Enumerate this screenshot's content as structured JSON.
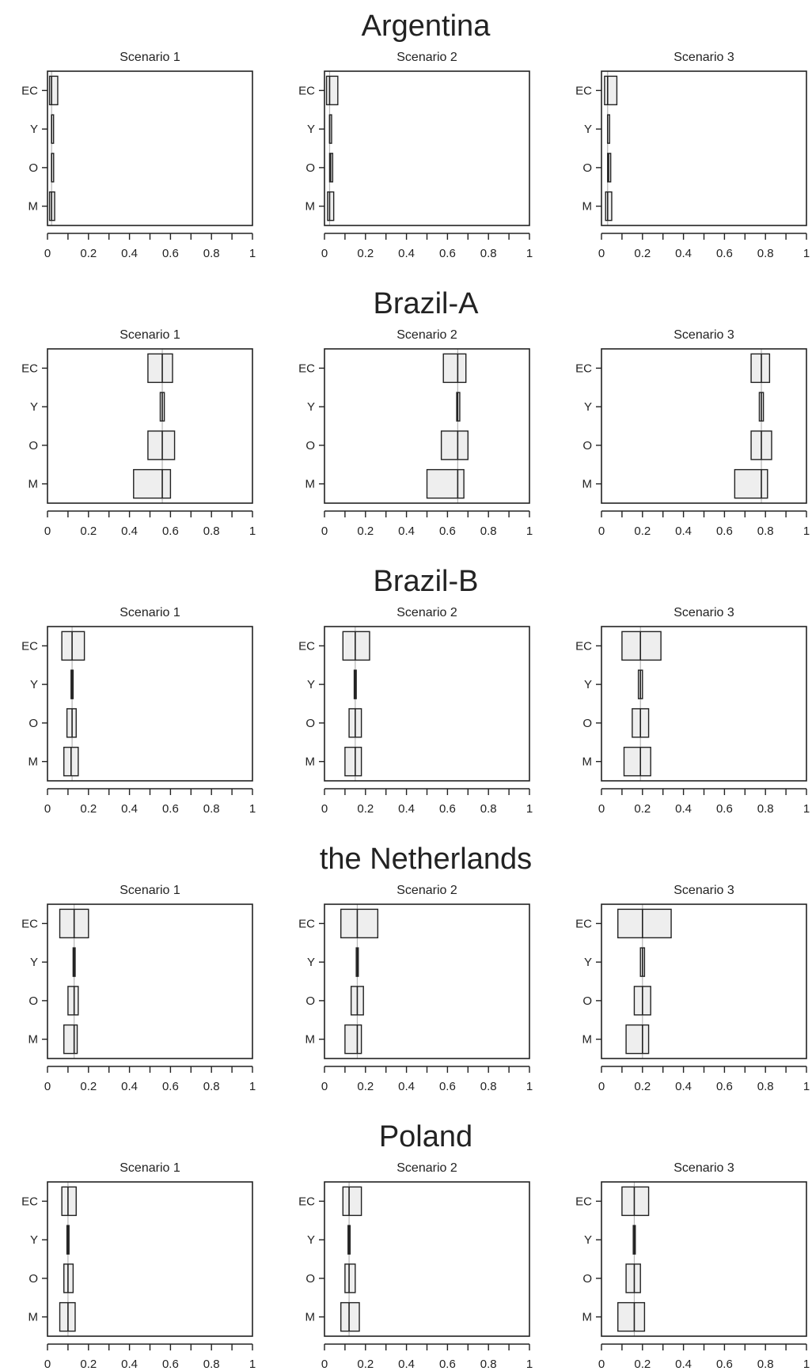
{
  "colors": {
    "box_fill": "#eeeeee",
    "stroke": "#222222",
    "reference_line": "#b5b5b5"
  },
  "chart_data": {
    "type": "boxplot",
    "categories": [
      "EC",
      "Y",
      "O",
      "M"
    ],
    "xlim": [
      0,
      1
    ],
    "xticks": [
      "0",
      "0.2",
      "0.4",
      "0.6",
      "0.8",
      "1"
    ],
    "scenario_titles": [
      "Scenario 1",
      "Scenario 2",
      "Scenario 3"
    ],
    "countries": [
      {
        "name": "Argentina",
        "scenarios": [
          {
            "title": "Scenario 1",
            "ref": 0.02,
            "boxes": [
              {
                "category": "EC",
                "q1": 0.01,
                "median": 0.02,
                "q3": 0.05
              },
              {
                "category": "Y",
                "q1": 0.02,
                "median": 0.02,
                "q3": 0.025
              },
              {
                "category": "O",
                "q1": 0.02,
                "median": 0.02,
                "q3": 0.03
              },
              {
                "category": "M",
                "q1": 0.01,
                "median": 0.02,
                "q3": 0.035
              }
            ]
          },
          {
            "title": "Scenario 2",
            "ref": 0.025,
            "boxes": [
              {
                "category": "EC",
                "q1": 0.01,
                "median": 0.025,
                "q3": 0.065
              },
              {
                "category": "Y",
                "q1": 0.025,
                "median": 0.025,
                "q3": 0.03
              },
              {
                "category": "O",
                "q1": 0.025,
                "median": 0.03,
                "q3": 0.04
              },
              {
                "category": "M",
                "q1": 0.015,
                "median": 0.025,
                "q3": 0.045
              }
            ]
          },
          {
            "title": "Scenario 3",
            "ref": 0.03,
            "boxes": [
              {
                "category": "EC",
                "q1": 0.015,
                "median": 0.03,
                "q3": 0.075
              },
              {
                "category": "Y",
                "q1": 0.03,
                "median": 0.03,
                "q3": 0.035
              },
              {
                "category": "O",
                "q1": 0.03,
                "median": 0.035,
                "q3": 0.045
              },
              {
                "category": "M",
                "q1": 0.02,
                "median": 0.03,
                "q3": 0.05
              }
            ]
          }
        ]
      },
      {
        "name": "Brazil-A",
        "scenarios": [
          {
            "title": "Scenario 1",
            "ref": 0.56,
            "boxes": [
              {
                "category": "EC",
                "q1": 0.49,
                "median": 0.56,
                "q3": 0.61
              },
              {
                "category": "Y",
                "q1": 0.55,
                "median": 0.56,
                "q3": 0.57
              },
              {
                "category": "O",
                "q1": 0.49,
                "median": 0.56,
                "q3": 0.62
              },
              {
                "category": "M",
                "q1": 0.42,
                "median": 0.56,
                "q3": 0.6
              }
            ]
          },
          {
            "title": "Scenario 2",
            "ref": 0.65,
            "boxes": [
              {
                "category": "EC",
                "q1": 0.58,
                "median": 0.65,
                "q3": 0.69
              },
              {
                "category": "Y",
                "q1": 0.645,
                "median": 0.65,
                "q3": 0.66
              },
              {
                "category": "O",
                "q1": 0.57,
                "median": 0.65,
                "q3": 0.7
              },
              {
                "category": "M",
                "q1": 0.5,
                "median": 0.65,
                "q3": 0.68
              }
            ]
          },
          {
            "title": "Scenario 3",
            "ref": 0.78,
            "boxes": [
              {
                "category": "EC",
                "q1": 0.73,
                "median": 0.78,
                "q3": 0.82
              },
              {
                "category": "Y",
                "q1": 0.77,
                "median": 0.78,
                "q3": 0.79
              },
              {
                "category": "O",
                "q1": 0.73,
                "median": 0.78,
                "q3": 0.83
              },
              {
                "category": "M",
                "q1": 0.65,
                "median": 0.78,
                "q3": 0.81
              }
            ]
          }
        ]
      },
      {
        "name": "Brazil-B",
        "scenarios": [
          {
            "title": "Scenario 1",
            "ref": 0.12,
            "boxes": [
              {
                "category": "EC",
                "q1": 0.07,
                "median": 0.12,
                "q3": 0.18
              },
              {
                "category": "Y",
                "q1": 0.115,
                "median": 0.12,
                "q3": 0.125
              },
              {
                "category": "O",
                "q1": 0.095,
                "median": 0.12,
                "q3": 0.14
              },
              {
                "category": "M",
                "q1": 0.08,
                "median": 0.115,
                "q3": 0.15
              }
            ]
          },
          {
            "title": "Scenario 2",
            "ref": 0.15,
            "boxes": [
              {
                "category": "EC",
                "q1": 0.09,
                "median": 0.15,
                "q3": 0.22
              },
              {
                "category": "Y",
                "q1": 0.145,
                "median": 0.15,
                "q3": 0.155
              },
              {
                "category": "O",
                "q1": 0.12,
                "median": 0.15,
                "q3": 0.18
              },
              {
                "category": "M",
                "q1": 0.1,
                "median": 0.15,
                "q3": 0.18
              }
            ]
          },
          {
            "title": "Scenario 3",
            "ref": 0.19,
            "boxes": [
              {
                "category": "EC",
                "q1": 0.1,
                "median": 0.19,
                "q3": 0.29
              },
              {
                "category": "Y",
                "q1": 0.18,
                "median": 0.19,
                "q3": 0.2
              },
              {
                "category": "O",
                "q1": 0.15,
                "median": 0.19,
                "q3": 0.23
              },
              {
                "category": "M",
                "q1": 0.11,
                "median": 0.19,
                "q3": 0.24
              }
            ]
          }
        ]
      },
      {
        "name": "the Netherlands",
        "scenarios": [
          {
            "title": "Scenario 1",
            "ref": 0.13,
            "boxes": [
              {
                "category": "EC",
                "q1": 0.06,
                "median": 0.13,
                "q3": 0.2
              },
              {
                "category": "Y",
                "q1": 0.125,
                "median": 0.13,
                "q3": 0.135
              },
              {
                "category": "O",
                "q1": 0.1,
                "median": 0.13,
                "q3": 0.15
              },
              {
                "category": "M",
                "q1": 0.08,
                "median": 0.13,
                "q3": 0.145
              }
            ]
          },
          {
            "title": "Scenario 2",
            "ref": 0.16,
            "boxes": [
              {
                "category": "EC",
                "q1": 0.08,
                "median": 0.16,
                "q3": 0.26
              },
              {
                "category": "Y",
                "q1": 0.155,
                "median": 0.16,
                "q3": 0.165
              },
              {
                "category": "O",
                "q1": 0.13,
                "median": 0.16,
                "q3": 0.19
              },
              {
                "category": "M",
                "q1": 0.1,
                "median": 0.16,
                "q3": 0.18
              }
            ]
          },
          {
            "title": "Scenario 3",
            "ref": 0.2,
            "boxes": [
              {
                "category": "EC",
                "q1": 0.08,
                "median": 0.2,
                "q3": 0.34
              },
              {
                "category": "Y",
                "q1": 0.19,
                "median": 0.2,
                "q3": 0.21
              },
              {
                "category": "O",
                "q1": 0.16,
                "median": 0.2,
                "q3": 0.24
              },
              {
                "category": "M",
                "q1": 0.12,
                "median": 0.2,
                "q3": 0.23
              }
            ]
          }
        ]
      },
      {
        "name": "Poland",
        "scenarios": [
          {
            "title": "Scenario 1",
            "ref": 0.1,
            "boxes": [
              {
                "category": "EC",
                "q1": 0.07,
                "median": 0.1,
                "q3": 0.14
              },
              {
                "category": "Y",
                "q1": 0.095,
                "median": 0.1,
                "q3": 0.105
              },
              {
                "category": "O",
                "q1": 0.08,
                "median": 0.1,
                "q3": 0.125
              },
              {
                "category": "M",
                "q1": 0.06,
                "median": 0.1,
                "q3": 0.135
              }
            ]
          },
          {
            "title": "Scenario 2",
            "ref": 0.12,
            "boxes": [
              {
                "category": "EC",
                "q1": 0.09,
                "median": 0.12,
                "q3": 0.18
              },
              {
                "category": "Y",
                "q1": 0.115,
                "median": 0.12,
                "q3": 0.125
              },
              {
                "category": "O",
                "q1": 0.1,
                "median": 0.12,
                "q3": 0.15
              },
              {
                "category": "M",
                "q1": 0.08,
                "median": 0.12,
                "q3": 0.17
              }
            ]
          },
          {
            "title": "Scenario 3",
            "ref": 0.16,
            "boxes": [
              {
                "category": "EC",
                "q1": 0.1,
                "median": 0.16,
                "q3": 0.23
              },
              {
                "category": "Y",
                "q1": 0.155,
                "median": 0.16,
                "q3": 0.165
              },
              {
                "category": "O",
                "q1": 0.12,
                "median": 0.16,
                "q3": 0.19
              },
              {
                "category": "M",
                "q1": 0.08,
                "median": 0.16,
                "q3": 0.21
              }
            ]
          }
        ]
      }
    ]
  }
}
